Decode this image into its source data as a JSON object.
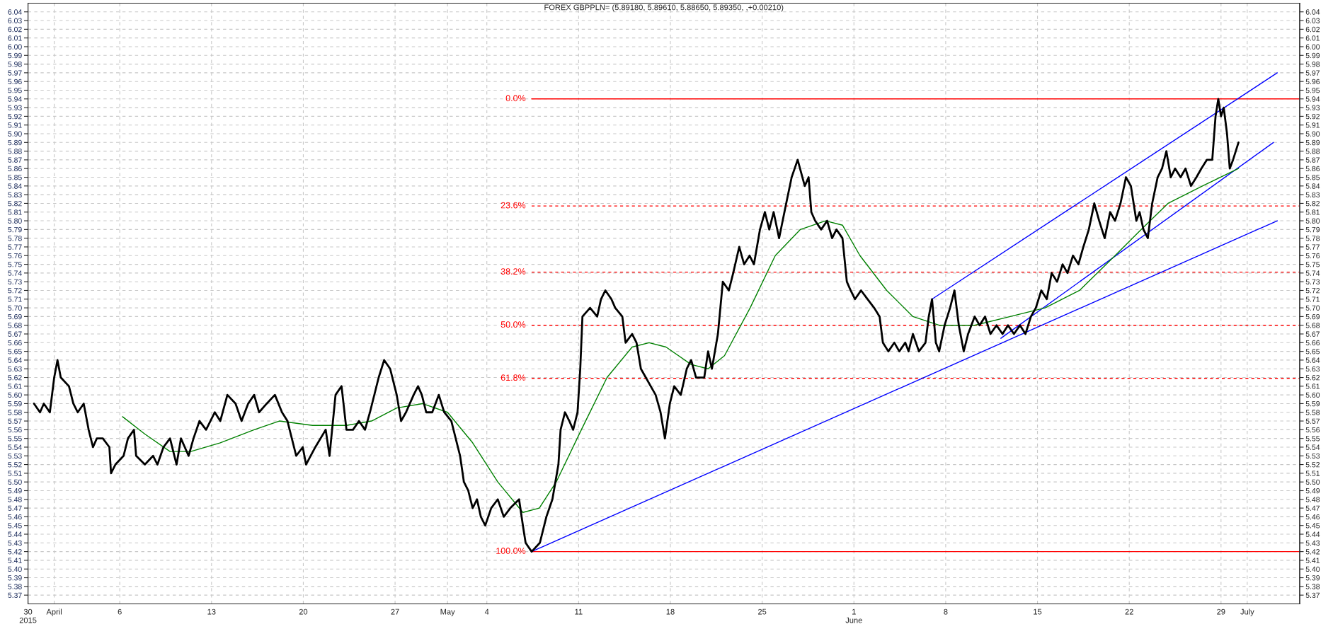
{
  "chart_data": {
    "type": "line",
    "title": "FOREX GBPPLN= (5.89180, 5.89610, 5.88650, 5.89350, ,+0.00210)",
    "xlim": [
      "2015-03-30",
      "2015-07-05"
    ],
    "ylim": [
      5.36,
      6.05
    ],
    "y2lim": [
      5.36,
      6.05
    ],
    "grid": true,
    "legend": false,
    "xticks": [
      {
        "value": "2015-03-30",
        "label": "30\n2015"
      },
      {
        "value": "2015-04-01",
        "label": "April"
      },
      {
        "value": "2015-04-06",
        "label": "6"
      },
      {
        "value": "2015-04-13",
        "label": "13"
      },
      {
        "value": "2015-04-20",
        "label": "20"
      },
      {
        "value": "2015-04-27",
        "label": "27"
      },
      {
        "value": "2015-05-01",
        "label": "May"
      },
      {
        "value": "2015-05-04",
        "label": "4"
      },
      {
        "value": "2015-05-11",
        "label": "11"
      },
      {
        "value": "2015-05-18",
        "label": "18"
      },
      {
        "value": "2015-05-25",
        "label": "25"
      },
      {
        "value": "2015-06-01",
        "label": "1\nJune"
      },
      {
        "value": "2015-06-08",
        "label": "8"
      },
      {
        "value": "2015-06-15",
        "label": "15"
      },
      {
        "value": "2015-06-22",
        "label": "22"
      },
      {
        "value": "2015-06-29",
        "label": "29"
      },
      {
        "value": "2015-07-01",
        "label": "July"
      }
    ],
    "yticks": [
      {
        "value": 5.37,
        "label": "5.37"
      },
      {
        "value": 5.38,
        "label": "5.38"
      },
      {
        "value": 5.39,
        "label": "5.39"
      },
      {
        "value": 5.4,
        "label": "5.40"
      },
      {
        "value": 5.41,
        "label": "5.41"
      },
      {
        "value": 5.42,
        "label": "5.42"
      },
      {
        "value": 5.43,
        "label": "5.43"
      },
      {
        "value": 5.44,
        "label": "5.44"
      },
      {
        "value": 5.45,
        "label": "5.45"
      },
      {
        "value": 5.46,
        "label": "5.46"
      },
      {
        "value": 5.47,
        "label": "5.47"
      },
      {
        "value": 5.48,
        "label": "5.48"
      },
      {
        "value": 5.49,
        "label": "5.49"
      },
      {
        "value": 5.5,
        "label": "5.50"
      },
      {
        "value": 5.51,
        "label": "5.51"
      },
      {
        "value": 5.52,
        "label": "5.52"
      },
      {
        "value": 5.53,
        "label": "5.53"
      },
      {
        "value": 5.54,
        "label": "5.54"
      },
      {
        "value": 5.55,
        "label": "5.55"
      },
      {
        "value": 5.56,
        "label": "5.56"
      },
      {
        "value": 5.57,
        "label": "5.57"
      },
      {
        "value": 5.58,
        "label": "5.58"
      },
      {
        "value": 5.59,
        "label": "5.59"
      },
      {
        "value": 5.6,
        "label": "5.60"
      },
      {
        "value": 5.61,
        "label": "5.61"
      },
      {
        "value": 5.62,
        "label": "5.62"
      },
      {
        "value": 5.63,
        "label": "5.63"
      },
      {
        "value": 5.64,
        "label": "5.64"
      },
      {
        "value": 5.65,
        "label": "5.65"
      },
      {
        "value": 5.66,
        "label": "5.66"
      },
      {
        "value": 5.67,
        "label": "5.67"
      },
      {
        "value": 5.68,
        "label": "5.68"
      },
      {
        "value": 5.69,
        "label": "5.69"
      },
      {
        "value": 5.7,
        "label": "5.70"
      },
      {
        "value": 5.71,
        "label": "5.71"
      },
      {
        "value": 5.72,
        "label": "5.72"
      },
      {
        "value": 5.73,
        "label": "5.73"
      },
      {
        "value": 5.74,
        "label": "5.74"
      },
      {
        "value": 5.75,
        "label": "5.75"
      },
      {
        "value": 5.76,
        "label": "5.76"
      },
      {
        "value": 5.77,
        "label": "5.77"
      },
      {
        "value": 5.78,
        "label": "5.78"
      },
      {
        "value": 5.79,
        "label": "5.79"
      },
      {
        "value": 5.8,
        "label": "5.80"
      },
      {
        "value": 5.81,
        "label": "5.81"
      },
      {
        "value": 5.82,
        "label": "5.82"
      },
      {
        "value": 5.83,
        "label": "5.83"
      },
      {
        "value": 5.84,
        "label": "5.84"
      },
      {
        "value": 5.85,
        "label": "5.85"
      },
      {
        "value": 5.86,
        "label": "5.86"
      },
      {
        "value": 5.87,
        "label": "5.87"
      },
      {
        "value": 5.88,
        "label": "5.88"
      },
      {
        "value": 5.89,
        "label": "5.89"
      },
      {
        "value": 5.9,
        "label": "5.90"
      },
      {
        "value": 5.91,
        "label": "5.91"
      },
      {
        "value": 5.92,
        "label": "5.92"
      },
      {
        "value": 5.93,
        "label": "5.93"
      },
      {
        "value": 5.94,
        "label": "5.94"
      },
      {
        "value": 5.95,
        "label": "5.95"
      },
      {
        "value": 5.96,
        "label": "5.96"
      },
      {
        "value": 5.97,
        "label": "5.97"
      },
      {
        "value": 5.98,
        "label": "5.98"
      },
      {
        "value": 5.99,
        "label": "5.99"
      },
      {
        "value": 6.0,
        "label": "6.00"
      },
      {
        "value": 6.01,
        "label": "6.01"
      },
      {
        "value": 6.02,
        "label": "6.02"
      },
      {
        "value": 6.03,
        "label": "6.03"
      },
      {
        "value": 6.04,
        "label": "6.04"
      }
    ],
    "y2ticks": [
      {
        "value": 5.37,
        "label": "5.37"
      },
      {
        "value": 5.38,
        "label": "5.38"
      },
      {
        "value": 5.39,
        "label": "5.39"
      },
      {
        "value": 5.4,
        "label": "5.40"
      },
      {
        "value": 5.41,
        "label": "5.41"
      },
      {
        "value": 5.42,
        "label": "5.42"
      },
      {
        "value": 5.43,
        "label": "5.43"
      },
      {
        "value": 5.44,
        "label": "5.44"
      },
      {
        "value": 5.45,
        "label": "5.45"
      },
      {
        "value": 5.46,
        "label": "5.46"
      },
      {
        "value": 5.47,
        "label": "5.47"
      },
      {
        "value": 5.48,
        "label": "5.48"
      },
      {
        "value": 5.49,
        "label": "5.49"
      },
      {
        "value": 5.5,
        "label": "5.50"
      },
      {
        "value": 5.51,
        "label": "5.51"
      },
      {
        "value": 5.52,
        "label": "5.52"
      },
      {
        "value": 5.53,
        "label": "5.53"
      },
      {
        "value": 5.54,
        "label": "5.54"
      },
      {
        "value": 5.55,
        "label": "5.55"
      },
      {
        "value": 5.56,
        "label": "5.56"
      },
      {
        "value": 5.57,
        "label": "5.57"
      },
      {
        "value": 5.58,
        "label": "5.58"
      },
      {
        "value": 5.59,
        "label": "5.59"
      },
      {
        "value": 5.6,
        "label": "5.60"
      },
      {
        "value": 5.61,
        "label": "5.61"
      },
      {
        "value": 5.62,
        "label": "5.62"
      },
      {
        "value": 5.63,
        "label": "5.63"
      },
      {
        "value": 5.64,
        "label": "5.64"
      },
      {
        "value": 5.65,
        "label": "5.65"
      },
      {
        "value": 5.66,
        "label": "5.66"
      },
      {
        "value": 5.67,
        "label": "5.67"
      },
      {
        "value": 5.68,
        "label": "5.68"
      },
      {
        "value": 5.69,
        "label": "5.69"
      },
      {
        "value": 5.7,
        "label": "5.70"
      },
      {
        "value": 5.71,
        "label": "5.71"
      },
      {
        "value": 5.72,
        "label": "5.72"
      },
      {
        "value": 5.73,
        "label": "5.73"
      },
      {
        "value": 5.74,
        "label": "5.74"
      },
      {
        "value": 5.75,
        "label": "5.75"
      },
      {
        "value": 5.76,
        "label": "5.76"
      },
      {
        "value": 5.77,
        "label": "5.77"
      },
      {
        "value": 5.78,
        "label": "5.78"
      },
      {
        "value": 5.79,
        "label": "5.79"
      },
      {
        "value": 5.8,
        "label": "5.80"
      },
      {
        "value": 5.81,
        "label": "5.81"
      },
      {
        "value": 5.82,
        "label": "5.82"
      },
      {
        "value": 5.83,
        "label": "5.83"
      },
      {
        "value": 5.84,
        "label": "5.84"
      },
      {
        "value": 5.85,
        "label": "5.85"
      },
      {
        "value": 5.86,
        "label": "5.86"
      },
      {
        "value": 5.87,
        "label": "5.87"
      },
      {
        "value": 5.88,
        "label": "5.88"
      },
      {
        "value": 5.89,
        "label": "5.89"
      },
      {
        "value": 5.9,
        "label": "5.90"
      },
      {
        "value": 5.91,
        "label": "5.91"
      },
      {
        "value": 5.92,
        "label": "5.92"
      },
      {
        "value": 5.93,
        "label": "5.93"
      },
      {
        "value": 5.94,
        "label": "5.94"
      },
      {
        "value": 5.95,
        "label": "5.95"
      },
      {
        "value": 5.96,
        "label": "5.96"
      },
      {
        "value": 5.97,
        "label": "5.97"
      },
      {
        "value": 5.98,
        "label": "5.98"
      },
      {
        "value": 5.99,
        "label": "5.99"
      },
      {
        "value": 6.0,
        "label": "6.00"
      },
      {
        "value": 6.01,
        "label": "6.01"
      },
      {
        "value": 6.02,
        "label": "6.02"
      },
      {
        "value": 6.03,
        "label": "6.03"
      },
      {
        "value": 6.04,
        "label": "6.04"
      }
    ],
    "series": [
      {
        "name": "0.0%",
        "color": "#ff0000",
        "line_style": "solid",
        "x": [
          "2015-05-07T10:00",
          "2015-07-05"
        ],
        "values": [
          5.94,
          5.94
        ]
      },
      {
        "name": "23.6%",
        "color": "#ff0000",
        "line_style": "dashed",
        "x": [
          "2015-05-07T10:00",
          "2015-07-05"
        ],
        "values": [
          5.817,
          5.817
        ]
      },
      {
        "name": "38.2%",
        "color": "#ff0000",
        "line_style": "dashed",
        "x": [
          "2015-05-07T10:00",
          "2015-07-05"
        ],
        "values": [
          5.741,
          5.741
        ]
      },
      {
        "name": "50.0%",
        "color": "#ff0000",
        "line_style": "dashed",
        "x": [
          "2015-05-07T10:00",
          "2015-07-05"
        ],
        "values": [
          5.68,
          5.68
        ]
      },
      {
        "name": "61.8%",
        "color": "#ff0000",
        "line_style": "dashed",
        "x": [
          "2015-05-07T10:00",
          "2015-07-05"
        ],
        "values": [
          5.619,
          5.619
        ]
      },
      {
        "name": "100.0%",
        "color": "#ff0000",
        "line_style": "solid",
        "x": [
          "2015-05-07T10:00",
          "2015-07-05"
        ],
        "values": [
          5.42,
          5.42
        ]
      },
      {
        "color": "#0000ff",
        "x": [
          "2015-05-07T10:00",
          "2015-07-03T07:00"
        ],
        "values": [
          5.42,
          5.8
        ]
      },
      {
        "color": "#0000ff",
        "x": [
          "2015-06-06T23:00",
          "2015-07-03T07:00"
        ],
        "values": [
          5.71,
          5.97
        ]
      },
      {
        "color": "#0000ff",
        "x": [
          "2015-06-12T05:00",
          "2015-07-03T00:00"
        ],
        "values": [
          5.665,
          5.89
        ]
      },
      {
        "color": "#008000",
        "x": [
          "2015-04-06T05:00",
          "2015-04-07T22:00",
          "2015-04-09T20:00",
          "2015-04-11T10:00",
          "2015-04-13T16:00",
          "2015-04-16T06:00",
          "2015-04-18T04:00",
          "2015-04-20T17:00",
          "2015-04-23T07:00",
          "2015-04-25T05:00",
          "2015-04-27T03:00",
          "2015-04-29T02:00",
          "2015-05-01T00:00",
          "2015-05-02T22:00",
          "2015-05-04T20:00",
          "2015-05-06T18:00",
          "2015-05-08T00:00",
          "2015-05-09T07:00",
          "2015-05-11T05:00",
          "2015-05-13T04:00",
          "2015-05-15T02:00",
          "2015-05-16T09:00",
          "2015-05-17T16:00",
          "2015-05-19T14:00",
          "2015-05-20T21:00",
          "2015-05-22T03:00",
          "2015-05-24T02:00",
          "2015-05-26T00:00",
          "2015-05-27T22:00",
          "2015-05-29T20:00",
          "2015-05-31T03:00",
          "2015-06-01T11:00",
          "2015-06-03T12:00",
          "2015-06-05T12:00",
          "2015-06-07T12:00",
          "2015-06-10T05:00",
          "2015-06-12T22:00",
          "2015-06-15T14:00",
          "2015-06-18T05:00",
          "2015-06-20T22:00",
          "2015-06-22T22:00",
          "2015-06-24T23:00",
          "2015-06-27T14:00",
          "2015-06-30T08:00"
        ],
        "values": [
          5.575,
          5.555,
          5.535,
          5.535,
          5.545,
          5.56,
          5.57,
          5.565,
          5.565,
          5.57,
          5.585,
          5.59,
          5.58,
          5.545,
          5.5,
          5.465,
          5.47,
          5.5,
          5.56,
          5.62,
          5.655,
          5.66,
          5.655,
          5.635,
          5.63,
          5.645,
          5.7,
          5.76,
          5.79,
          5.8,
          5.795,
          5.76,
          5.72,
          5.69,
          5.68,
          5.68,
          5.69,
          5.7,
          5.72,
          5.76,
          5.79,
          5.82,
          5.84,
          5.86
        ]
      },
      {
        "color": "#000000",
        "x": [
          "2015-03-30T11:00",
          "2015-03-30T22:00",
          "2015-03-31T05:00",
          "2015-03-31T16:00",
          "2015-04-01T00:00",
          "2015-04-01T06:00",
          "2015-04-01T12:00",
          "2015-04-02T03:00",
          "2015-04-02T11:00",
          "2015-04-02T19:00",
          "2015-04-03T06:00",
          "2015-04-03T15:00",
          "2015-04-03T23:00",
          "2015-04-04T06:00",
          "2015-04-04T17:00",
          "2015-04-05T05:00",
          "2015-04-05T08:00",
          "2015-04-05T16:00",
          "2015-04-06T07:00",
          "2015-04-06T15:00",
          "2015-04-07T02:00",
          "2015-04-07T06:00",
          "2015-04-07T22:00",
          "2015-04-08T13:00",
          "2015-04-08T21:00",
          "2015-04-09T08:00",
          "2015-04-09T20:00",
          "2015-04-10T08:00",
          "2015-04-10T16:00",
          "2015-04-11T06:00",
          "2015-04-11T15:00",
          "2015-04-12T02:00",
          "2015-04-12T14:00",
          "2015-04-13T06:00",
          "2015-04-13T16:00",
          "2015-04-14T05:00",
          "2015-04-14T20:00",
          "2015-04-15T07:00",
          "2015-04-15T19:00",
          "2015-04-16T06:00",
          "2015-04-16T15:00",
          "2015-04-17T05:00",
          "2015-04-17T20:00",
          "2015-04-18T09:00",
          "2015-04-18T19:00",
          "2015-04-19T11:00",
          "2015-04-19T23:00",
          "2015-04-20T05:00",
          "2015-04-20T22:00",
          "2015-04-21T17:00",
          "2015-04-22T00:00",
          "2015-04-22T11:00",
          "2015-04-22T22:00",
          "2015-04-23T07:00",
          "2015-04-23T19:00",
          "2015-04-24T06:00",
          "2015-04-24T17:00",
          "2015-04-25T02:00",
          "2015-04-25T18:00",
          "2015-04-26T04:00",
          "2015-04-26T15:00",
          "2015-04-27T03:00",
          "2015-04-27T11:00",
          "2015-04-27T20:00",
          "2015-04-28T10:00",
          "2015-04-28T18:00",
          "2015-04-29T01:00",
          "2015-04-29T09:00",
          "2015-04-29T20:00",
          "2015-04-30T08:00",
          "2015-04-30T18:00",
          "2015-05-01T07:00",
          "2015-05-01T23:00",
          "2015-05-02T06:00",
          "2015-05-02T14:00",
          "2015-05-02T22:00",
          "2015-05-03T06:00",
          "2015-05-03T13:00",
          "2015-05-03T21:00",
          "2015-05-04T08:00",
          "2015-05-04T20:00",
          "2015-05-05T07:00",
          "2015-05-05T19:00",
          "2015-05-06T11:00",
          "2015-05-06T18:00",
          "2015-05-06T23:00",
          "2015-05-07T10:00",
          "2015-05-08T01:00",
          "2015-05-08T13:00",
          "2015-05-09T00:00",
          "2015-05-09T11:00",
          "2015-05-09T15:00",
          "2015-05-09T23:00",
          "2015-05-10T07:00",
          "2015-05-10T14:00",
          "2015-05-10T22:00",
          "2015-05-11T03:00",
          "2015-05-11T07:00",
          "2015-05-11T21:00",
          "2015-05-12T10:00",
          "2015-05-12T17:00",
          "2015-05-13T01:00",
          "2015-05-13T12:00",
          "2015-05-13T19:00",
          "2015-05-14T08:00",
          "2015-05-14T14:00",
          "2015-05-15T02:00",
          "2015-05-15T10:00",
          "2015-05-15T18:00",
          "2015-05-16T03:00",
          "2015-05-16T12:00",
          "2015-05-16T21:00",
          "2015-05-17T06:00",
          "2015-05-17T14:00",
          "2015-05-17T23:00",
          "2015-05-18T07:00",
          "2015-05-18T19:00",
          "2015-05-19T06:00",
          "2015-05-19T14:00",
          "2015-05-19T23:00",
          "2015-05-20T14:00",
          "2015-05-20T21:00",
          "2015-05-21T04:00",
          "2015-05-21T15:00",
          "2015-05-22T00:00",
          "2015-05-22T11:00",
          "2015-05-22T19:00",
          "2015-05-23T06:00",
          "2015-05-23T15:00",
          "2015-05-24T01:00",
          "2015-05-24T09:00",
          "2015-05-24T20:00",
          "2015-05-25T05:00",
          "2015-05-25T13:00",
          "2015-05-25T21:00",
          "2015-05-26T07:00",
          "2015-05-26T20:00",
          "2015-05-27T06:00",
          "2015-05-27T17:00",
          "2015-05-28T06:00",
          "2015-05-28T13:00",
          "2015-05-28T18:00",
          "2015-05-29T01:00",
          "2015-05-29T12:00",
          "2015-05-29T23:00",
          "2015-05-30T08:00",
          "2015-05-30T16:00",
          "2015-05-31T03:00",
          "2015-05-31T11:00",
          "2015-05-31T18:00",
          "2015-06-01T02:00",
          "2015-06-01T13:00",
          "2015-06-02T01:00",
          "2015-06-02T13:00",
          "2015-06-02T23:00",
          "2015-06-03T05:00",
          "2015-06-03T15:00",
          "2015-06-04T02:00",
          "2015-06-04T11:00",
          "2015-06-04T22:00",
          "2015-06-05T04:00",
          "2015-06-05T12:00",
          "2015-06-05T23:00",
          "2015-06-06T11:00",
          "2015-06-06T17:00",
          "2015-06-06T23:00",
          "2015-06-07T06:00",
          "2015-06-07T12:00",
          "2015-06-07T22:00",
          "2015-06-08T08:00",
          "2015-06-08T16:00",
          "2015-06-09T00:00",
          "2015-06-09T09:00",
          "2015-06-09T17:00",
          "2015-06-10T05:00",
          "2015-06-10T14:00",
          "2015-06-11T00:00",
          "2015-06-11T10:00",
          "2015-06-11T21:00",
          "2015-06-12T08:00",
          "2015-06-12T18:00",
          "2015-06-13T05:00",
          "2015-06-13T16:00",
          "2015-06-14T02:00",
          "2015-06-14T12:00",
          "2015-06-14T21:00",
          "2015-06-15T07:00",
          "2015-06-15T17:00",
          "2015-06-16T02:00",
          "2015-06-16T12:00",
          "2015-06-16T22:00",
          "2015-06-17T07:00",
          "2015-06-17T17:00",
          "2015-06-18T03:00",
          "2015-06-18T12:00",
          "2015-06-18T22:00",
          "2015-06-19T08:00",
          "2015-06-19T17:00",
          "2015-06-20T03:00",
          "2015-06-20T13:00",
          "2015-06-20T22:00",
          "2015-06-21T08:00",
          "2015-06-21T18:00",
          "2015-06-22T03:00",
          "2015-06-22T13:00",
          "2015-06-22T19:00",
          "2015-06-23T02:00",
          "2015-06-23T10:00",
          "2015-06-23T18:00",
          "2015-06-24T04:00",
          "2015-06-24T12:00",
          "2015-06-24T20:00",
          "2015-06-25T04:00",
          "2015-06-25T12:00",
          "2015-06-25T22:00",
          "2015-06-26T07:00",
          "2015-06-26T17:00",
          "2015-06-27T03:00",
          "2015-06-27T12:00",
          "2015-06-27T22:00",
          "2015-06-28T08:00",
          "2015-06-28T14:00",
          "2015-06-28T19:00",
          "2015-06-29T00:00",
          "2015-06-29T05:00",
          "2015-06-29T11:00",
          "2015-06-29T16:00",
          "2015-06-29T22:00",
          "2015-06-30T03:00",
          "2015-06-30T08:00"
        ],
        "values": [
          5.59,
          5.58,
          5.59,
          5.58,
          5.62,
          5.64,
          5.62,
          5.61,
          5.59,
          5.58,
          5.59,
          5.56,
          5.54,
          5.55,
          5.55,
          5.54,
          5.51,
          5.52,
          5.53,
          5.55,
          5.56,
          5.53,
          5.52,
          5.53,
          5.52,
          5.54,
          5.55,
          5.52,
          5.55,
          5.53,
          5.55,
          5.57,
          5.56,
          5.58,
          5.57,
          5.6,
          5.59,
          5.57,
          5.59,
          5.6,
          5.58,
          5.59,
          5.6,
          5.58,
          5.57,
          5.53,
          5.54,
          5.52,
          5.54,
          5.56,
          5.53,
          5.6,
          5.61,
          5.56,
          5.56,
          5.57,
          5.56,
          5.58,
          5.62,
          5.64,
          5.63,
          5.6,
          5.57,
          5.58,
          5.6,
          5.61,
          5.6,
          5.58,
          5.58,
          5.6,
          5.58,
          5.57,
          5.53,
          5.5,
          5.49,
          5.47,
          5.48,
          5.46,
          5.45,
          5.47,
          5.48,
          5.46,
          5.47,
          5.48,
          5.45,
          5.43,
          5.42,
          5.43,
          5.46,
          5.48,
          5.52,
          5.56,
          5.58,
          5.57,
          5.56,
          5.58,
          5.63,
          5.69,
          5.7,
          5.69,
          5.71,
          5.72,
          5.71,
          5.7,
          5.69,
          5.66,
          5.67,
          5.66,
          5.63,
          5.62,
          5.61,
          5.6,
          5.58,
          5.55,
          5.59,
          5.61,
          5.6,
          5.63,
          5.64,
          5.62,
          5.62,
          5.65,
          5.63,
          5.67,
          5.73,
          5.72,
          5.74,
          5.77,
          5.75,
          5.76,
          5.75,
          5.79,
          5.81,
          5.79,
          5.81,
          5.78,
          5.82,
          5.85,
          5.87,
          5.84,
          5.85,
          5.81,
          5.8,
          5.79,
          5.8,
          5.78,
          5.79,
          5.78,
          5.73,
          5.72,
          5.71,
          5.72,
          5.71,
          5.7,
          5.69,
          5.66,
          5.65,
          5.66,
          5.65,
          5.66,
          5.65,
          5.67,
          5.65,
          5.66,
          5.69,
          5.71,
          5.66,
          5.65,
          5.68,
          5.7,
          5.72,
          5.68,
          5.65,
          5.67,
          5.69,
          5.68,
          5.69,
          5.67,
          5.68,
          5.67,
          5.68,
          5.67,
          5.68,
          5.67,
          5.69,
          5.7,
          5.72,
          5.71,
          5.74,
          5.73,
          5.75,
          5.74,
          5.76,
          5.75,
          5.77,
          5.79,
          5.82,
          5.8,
          5.78,
          5.81,
          5.8,
          5.82,
          5.85,
          5.84,
          5.8,
          5.81,
          5.79,
          5.78,
          5.82,
          5.85,
          5.86,
          5.88,
          5.85,
          5.86,
          5.85,
          5.86,
          5.84,
          5.85,
          5.86,
          5.87,
          5.87,
          5.92,
          5.94,
          5.92,
          5.93,
          5.9,
          5.86,
          5.87,
          5.88,
          5.89
        ]
      }
    ]
  }
}
